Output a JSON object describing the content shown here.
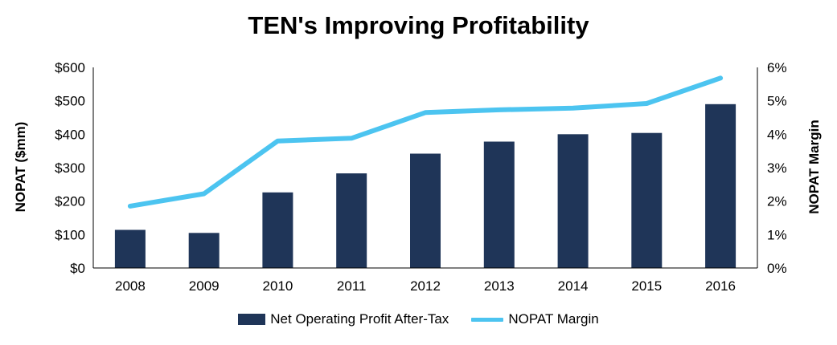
{
  "chart_data": {
    "type": "bar+line",
    "title": "TEN's Improving Profitability",
    "categories": [
      "2008",
      "2009",
      "2010",
      "2011",
      "2012",
      "2013",
      "2014",
      "2015",
      "2016"
    ],
    "series": [
      {
        "name": "Net Operating Profit After-Tax",
        "type": "bar",
        "axis": "left",
        "color": "#1F3558",
        "values": [
          114,
          105,
          226,
          283,
          342,
          378,
          400,
          404,
          490
        ]
      },
      {
        "name": "NOPAT Margin",
        "type": "line",
        "axis": "right",
        "color": "#4CC4F0",
        "values": [
          1.85,
          2.22,
          3.8,
          3.88,
          4.65,
          4.73,
          4.78,
          4.92,
          5.68
        ]
      }
    ],
    "ylabel": "NOPAT ($mm)",
    "ylabel_right": "NOPAT Margin",
    "ylim": [
      0,
      600
    ],
    "ylim_right": [
      0,
      6
    ],
    "yticks": [
      "$0",
      "$100",
      "$200",
      "$300",
      "$400",
      "$500",
      "$600"
    ],
    "yticks_right": [
      "0%",
      "1%",
      "2%",
      "3%",
      "4%",
      "5%",
      "6%"
    ],
    "grid": false,
    "legend_position": "bottom"
  }
}
